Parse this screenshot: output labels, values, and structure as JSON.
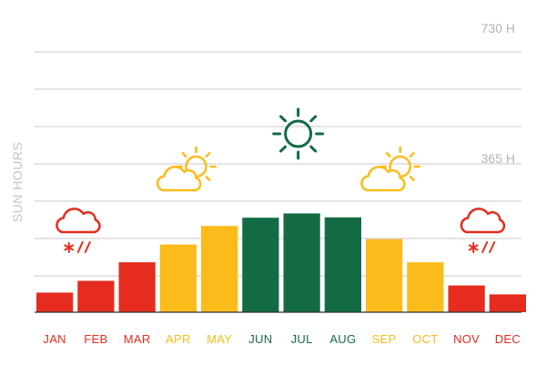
{
  "chart_data": {
    "type": "bar",
    "ylabel": "SUN HOURS",
    "ytick_labels": [
      {
        "value": 730,
        "label": "730 H"
      },
      {
        "value": 365,
        "label": "365 H"
      }
    ],
    "ylim": [
      0,
      730
    ],
    "grid": true,
    "categories": [
      "JAN",
      "FEB",
      "MAR",
      "APR",
      "MAY",
      "JUN",
      "JUL",
      "AUG",
      "SEP",
      "OCT",
      "NOV",
      "DEC"
    ],
    "values": [
      55,
      88,
      140,
      190,
      242,
      265,
      277,
      266,
      205,
      140,
      75,
      50
    ],
    "category_groups": [
      "red",
      "red",
      "red",
      "yellow",
      "yellow",
      "green",
      "green",
      "green",
      "yellow",
      "yellow",
      "red",
      "red"
    ],
    "colors": {
      "red": "#e52c1e",
      "yellow": "#fbbc1b",
      "green": "#136b44",
      "grid": "#c8c8c8",
      "axis": "#333333"
    },
    "annotations": [
      {
        "icon": "snow-rain-cloud-icon",
        "category": "FEB",
        "color": "#e52c1e"
      },
      {
        "icon": "partly-sunny-icon",
        "category": "APR",
        "color": "#fbbc1b"
      },
      {
        "icon": "sun-icon",
        "category": "JUL",
        "color": "#136b44"
      },
      {
        "icon": "partly-sunny-icon",
        "category": "SEP",
        "color": "#fbbc1b"
      },
      {
        "icon": "snow-rain-cloud-icon",
        "category": "NOV",
        "color": "#e52c1e"
      }
    ]
  }
}
